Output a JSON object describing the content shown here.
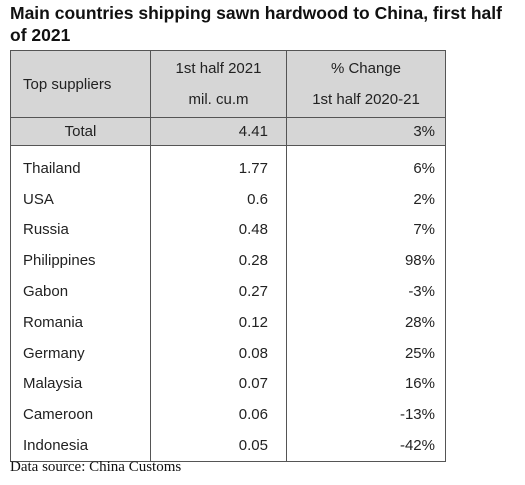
{
  "title": "Main countries shipping sawn hardwood to China, first half of 2021",
  "table": {
    "headers": {
      "suppliers": "Top suppliers",
      "volume_line1": "1st half 2021",
      "volume_line2": "mil. cu.m",
      "change_line1": "% Change",
      "change_line2": "1st half 2020-21"
    },
    "total": {
      "label": "Total",
      "volume": "4.41",
      "change": "3%"
    },
    "rows": [
      {
        "country": "Thailand",
        "volume": "1.77",
        "change": "6%"
      },
      {
        "country": "USA",
        "volume": "0.6",
        "change": "2%"
      },
      {
        "country": "Russia",
        "volume": "0.48",
        "change": "7%"
      },
      {
        "country": "Philippines",
        "volume": "0.28",
        "change": "98%"
      },
      {
        "country": "Gabon",
        "volume": "0.27",
        "change": "-3%"
      },
      {
        "country": "Romania",
        "volume": "0.12",
        "change": "28%"
      },
      {
        "country": "Germany",
        "volume": "0.08",
        "change": "25%"
      },
      {
        "country": "Malaysia",
        "volume": "0.07",
        "change": "16%"
      },
      {
        "country": "Cameroon",
        "volume": "0.06",
        "change": "-13%"
      },
      {
        "country": "Indonesia",
        "volume": "0.05",
        "change": "-42%"
      }
    ]
  },
  "source": "Data source: China Customs",
  "colors": {
    "header_bg": "#d6d6d6",
    "border": "#555555"
  }
}
